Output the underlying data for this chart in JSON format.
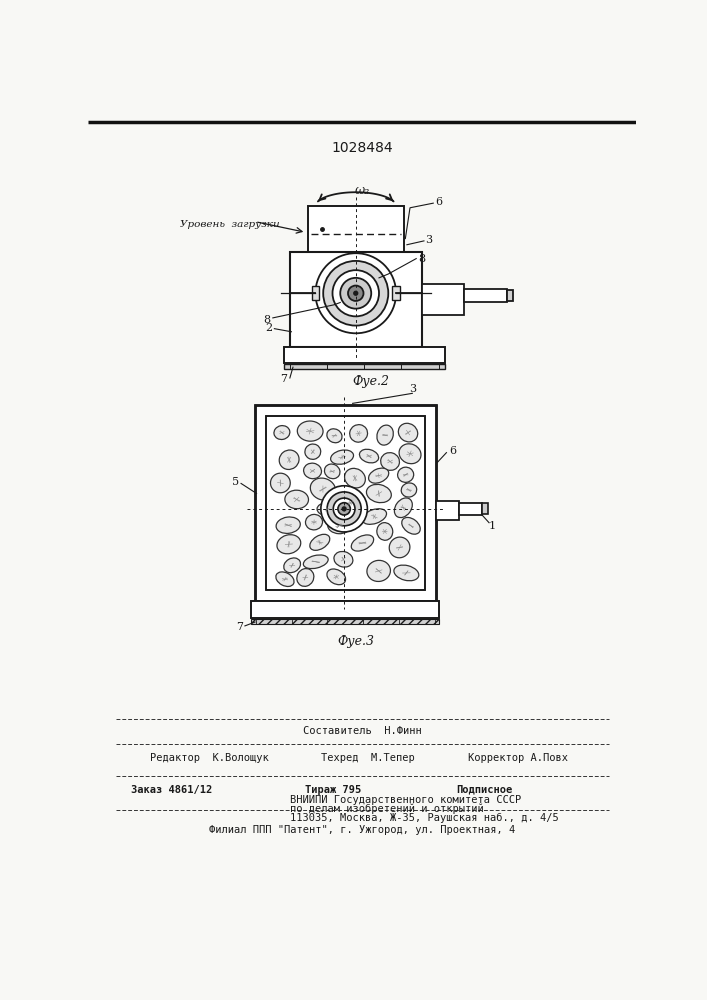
{
  "patent_number": "1028484",
  "bg_color": "#f8f8f5",
  "line_color": "#1a1a1a",
  "text_color": "#1a1a1a",
  "fig2_label": "Фуе.2",
  "fig3_label": "Фуе.3",
  "omega_label": "ω₂",
  "level_label": "Уровень  загрузки",
  "footer_col2_row0": "Составитель  Н.Финн",
  "footer_col1_row1": "Редактор  К.Волощук",
  "footer_col2_row1": "Техред  М.Тепер",
  "footer_col3_row1": "Корректор А.Повх",
  "footer_col1_row2": "Заказ 4861/12",
  "footer_col2_row2": "Тираж 795",
  "footer_col3_row2": "Подписное",
  "footer_vniipи": "ВНИИПИ Государственного комитета СССР",
  "footer_po_delam": "по делам изобретений и открытий",
  "footer_address": "113035, Москва, Ж-35, Раушская наб., д. 4/5",
  "footer_filial": "Филиал ППП \"Патент\", г. Ужгород, ул. Проектная, 4"
}
